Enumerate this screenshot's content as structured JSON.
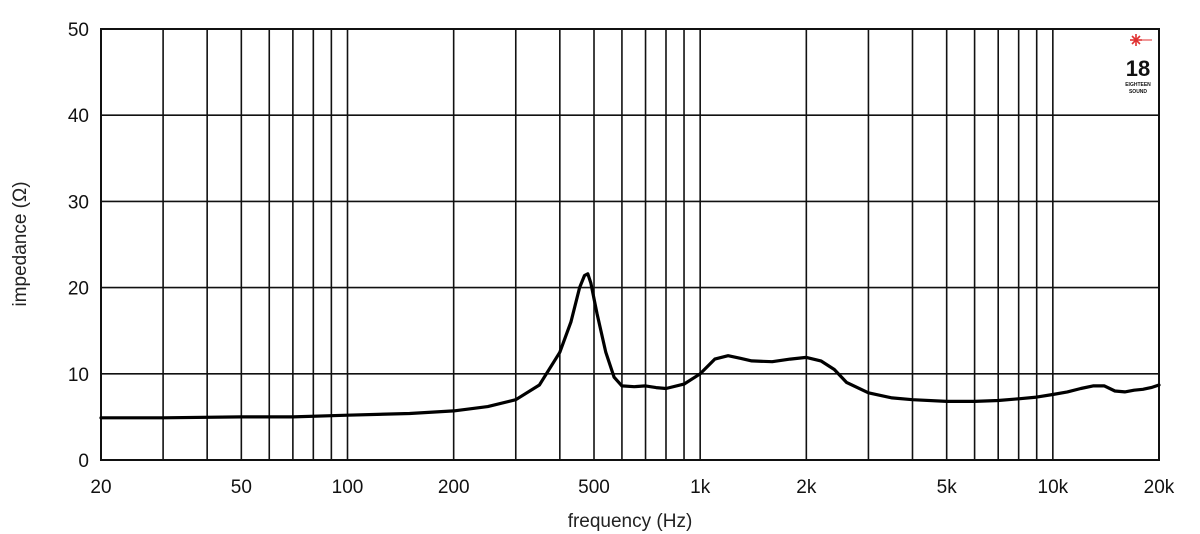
{
  "chart_data": {
    "type": "line",
    "title": "",
    "xlabel": "frequency (Hz)",
    "ylabel": "impedance (Ω)",
    "xscale": "log",
    "xlim": [
      20,
      20000
    ],
    "ylim": [
      0,
      50
    ],
    "grid": true,
    "legend": "none",
    "x_major_ticks": [
      {
        "value": 20,
        "label": "20"
      },
      {
        "value": 50,
        "label": "50"
      },
      {
        "value": 100,
        "label": "100"
      },
      {
        "value": 200,
        "label": "200"
      },
      {
        "value": 500,
        "label": "500"
      },
      {
        "value": 1000,
        "label": "1k"
      },
      {
        "value": 2000,
        "label": "2k"
      },
      {
        "value": 5000,
        "label": "5k"
      },
      {
        "value": 10000,
        "label": "10k"
      },
      {
        "value": 20000,
        "label": "20k"
      }
    ],
    "x_grid": [
      30,
      40,
      50,
      60,
      70,
      80,
      90,
      100,
      200,
      300,
      400,
      500,
      600,
      700,
      800,
      900,
      1000,
      2000,
      3000,
      4000,
      5000,
      6000,
      7000,
      8000,
      9000,
      10000
    ],
    "y_ticks": [
      0,
      10,
      20,
      30,
      40,
      50
    ],
    "series": [
      {
        "color": "#000000",
        "points": [
          [
            20,
            4.9
          ],
          [
            30,
            4.9
          ],
          [
            50,
            5.0
          ],
          [
            70,
            5.0
          ],
          [
            100,
            5.2
          ],
          [
            150,
            5.4
          ],
          [
            200,
            5.7
          ],
          [
            250,
            6.2
          ],
          [
            300,
            7.0
          ],
          [
            350,
            8.7
          ],
          [
            400,
            12.5
          ],
          [
            430,
            16.0
          ],
          [
            455,
            20.0
          ],
          [
            470,
            21.4
          ],
          [
            480,
            21.6
          ],
          [
            490,
            20.5
          ],
          [
            510,
            17.0
          ],
          [
            540,
            12.5
          ],
          [
            570,
            9.6
          ],
          [
            600,
            8.6
          ],
          [
            650,
            8.5
          ],
          [
            700,
            8.6
          ],
          [
            750,
            8.4
          ],
          [
            800,
            8.3
          ],
          [
            900,
            8.8
          ],
          [
            1000,
            10.0
          ],
          [
            1100,
            11.7
          ],
          [
            1200,
            12.1
          ],
          [
            1300,
            11.8
          ],
          [
            1400,
            11.5
          ],
          [
            1600,
            11.4
          ],
          [
            1800,
            11.7
          ],
          [
            2000,
            11.9
          ],
          [
            2200,
            11.5
          ],
          [
            2400,
            10.5
          ],
          [
            2600,
            9.0
          ],
          [
            3000,
            7.8
          ],
          [
            3500,
            7.2
          ],
          [
            4000,
            7.0
          ],
          [
            5000,
            6.8
          ],
          [
            6000,
            6.8
          ],
          [
            7000,
            6.9
          ],
          [
            8000,
            7.1
          ],
          [
            9000,
            7.3
          ],
          [
            10000,
            7.6
          ],
          [
            11000,
            7.9
          ],
          [
            12000,
            8.3
          ],
          [
            13000,
            8.6
          ],
          [
            14000,
            8.6
          ],
          [
            15000,
            8.0
          ],
          [
            16000,
            7.9
          ],
          [
            17000,
            8.1
          ],
          [
            18000,
            8.2
          ],
          [
            19000,
            8.4
          ],
          [
            20000,
            8.7
          ]
        ]
      }
    ]
  },
  "logo": {
    "number": "18",
    "line1": "EIGHTEEN",
    "line2": "SOUND",
    "accent_color": "#e03030"
  }
}
